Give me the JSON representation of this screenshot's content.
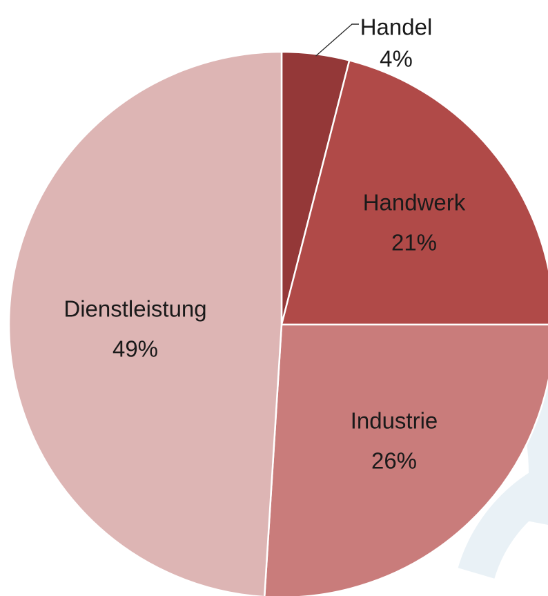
{
  "chart_data": {
    "type": "pie",
    "title": "",
    "start_angle_deg": 0,
    "direction": "clockwise",
    "slices": [
      {
        "label": "Handel",
        "value": 4,
        "value_label": "4%",
        "color": "#943838"
      },
      {
        "label": "Handwerk",
        "value": 21,
        "value_label": "21%",
        "color": "#b04a48"
      },
      {
        "label": "Industrie",
        "value": 26,
        "value_label": "26%",
        "color": "#c97c7b"
      },
      {
        "label": "Dienstleistung",
        "value": 49,
        "value_label": "49%",
        "color": "#ddb5b4"
      }
    ],
    "legend": "none",
    "labels_on_slices": true
  },
  "background": {
    "watermark_color": "#e9f1f6"
  }
}
